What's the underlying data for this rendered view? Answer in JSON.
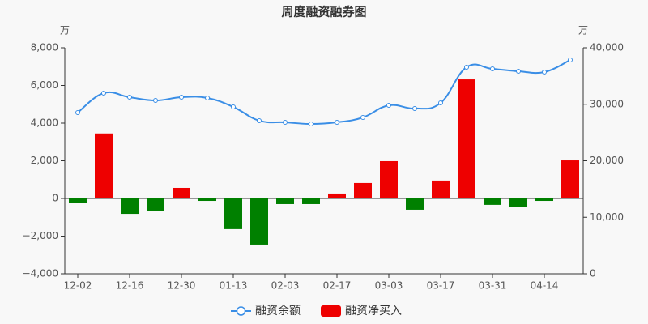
{
  "chart_data": {
    "type": "bar-line",
    "title": "周度融资融券图",
    "y_unit": "万",
    "y2_unit": "万",
    "categories": [
      "12-02",
      null,
      "12-16",
      null,
      "12-30",
      null,
      "01-13",
      null,
      "02-03",
      null,
      "02-17",
      null,
      "03-03",
      null,
      "03-17",
      null,
      "03-31",
      null,
      "04-14",
      null
    ],
    "series": [
      {
        "name": "融资余额",
        "type": "line",
        "axis": "y2",
        "color": "#3a8ee6",
        "values": [
          28530,
          31970,
          31250,
          30680,
          31250,
          31110,
          29530,
          27100,
          26810,
          26520,
          26810,
          27670,
          29820,
          29250,
          30250,
          36560,
          36270,
          35840,
          35700,
          37850
        ]
      },
      {
        "name": "融资净买入",
        "type": "bar",
        "color": "#ee0000",
        "negative_color": "#008000",
        "values": [
          -250,
          3450,
          -820,
          -650,
          560,
          -130,
          -1630,
          -2450,
          -300,
          -300,
          260,
          820,
          1980,
          -600,
          950,
          6320,
          -340,
          -430,
          -130,
          2020
        ]
      }
    ],
    "ylim": [
      -4000,
      8000
    ],
    "yticks": [
      {
        "value": -4000,
        "label": "−4,000"
      },
      {
        "value": -2000,
        "label": "−2,000"
      },
      0,
      {
        "value": 2000,
        "label": "2,000"
      },
      {
        "value": 4000,
        "label": "4,000"
      },
      {
        "value": 6000,
        "label": "6,000"
      },
      {
        "value": 8000,
        "label": "8,000"
      }
    ],
    "y2lim": [
      0,
      40000
    ],
    "y2ticks": [
      0,
      {
        "value": 10000,
        "label": "10,000"
      },
      {
        "value": 20000,
        "label": "20,000"
      },
      {
        "value": 30000,
        "label": "30,000"
      },
      {
        "value": 40000,
        "label": "40,000"
      }
    ]
  }
}
